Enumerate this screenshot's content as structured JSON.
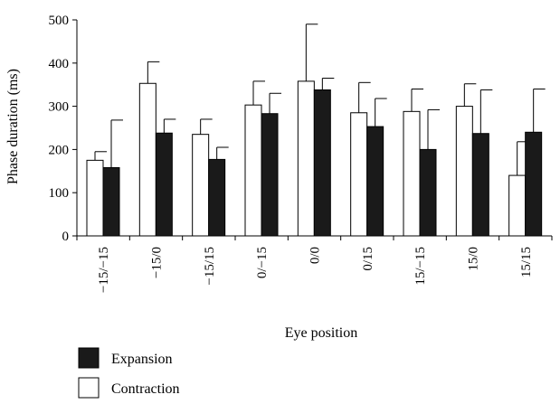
{
  "chart_data": {
    "type": "bar",
    "title": "",
    "xlabel": "Eye position",
    "ylabel": "Phase duration (ms)",
    "ylim": [
      0,
      500
    ],
    "yticks": [
      0,
      100,
      200,
      300,
      400,
      500
    ],
    "categories": [
      "−15/−15",
      "−15/0",
      "−15/15",
      "0/−15",
      "0/0",
      "0/15",
      "15/−15",
      "15/0",
      "15/15"
    ],
    "series": [
      {
        "name": "Contraction",
        "fill": "#ffffff",
        "values": [
          175,
          353,
          235,
          303,
          358,
          285,
          288,
          300,
          140
        ],
        "error_upper": [
          195,
          403,
          270,
          358,
          490,
          355,
          340,
          352,
          218
        ]
      },
      {
        "name": "Expansion",
        "fill": "#1a1a1a",
        "values": [
          158,
          238,
          177,
          283,
          338,
          253,
          200,
          237,
          240
        ],
        "error_upper": [
          268,
          270,
          205,
          330,
          365,
          318,
          292,
          338,
          340
        ]
      }
    ],
    "legend_order": [
      "Expansion",
      "Contraction"
    ],
    "legend_position": "bottom-left",
    "grid": false
  }
}
